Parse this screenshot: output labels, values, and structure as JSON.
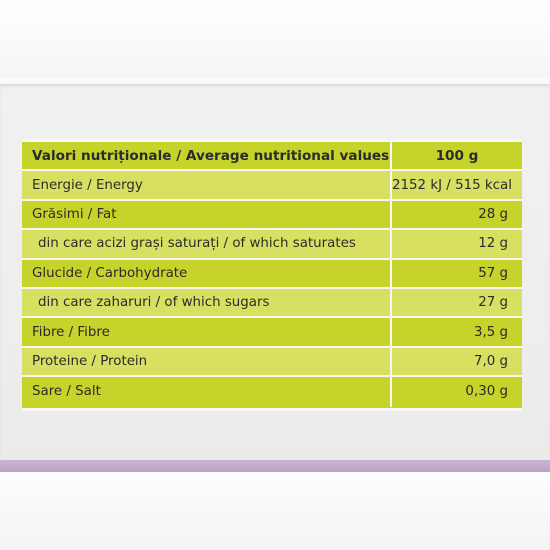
{
  "nutrition_table": {
    "header": {
      "label": "Valori nutriționale / Average nutritional values",
      "value": "100 g"
    },
    "rows": [
      {
        "label": "Energie / Energy",
        "value": "2152 kJ / 515 kcal"
      },
      {
        "label": "Grăsimi / Fat",
        "value": "28 g"
      },
      {
        "label": "din care acizi grași saturați / of which saturates",
        "value": "12 g"
      },
      {
        "label": "Glucide / Carbohydrate",
        "value": "57 g"
      },
      {
        "label": "din care zaharuri / of which sugars",
        "value": "27 g"
      },
      {
        "label": "Fibre / Fibre",
        "value": "3,5 g"
      },
      {
        "label": "Proteine / Protein",
        "value": "7,0 g"
      },
      {
        "label": "Sare / Salt",
        "value": "0,30 g"
      }
    ]
  },
  "colors": {
    "table_green": "#c8d42a",
    "table_green_light": "#d8e062",
    "box_edge_purple": "#b9a0c8",
    "separator": "#f7f7f2"
  }
}
